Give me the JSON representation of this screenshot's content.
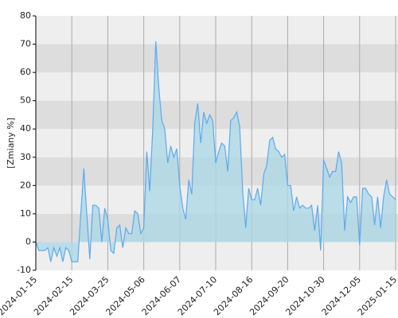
{
  "chart_data": {
    "type": "area",
    "y_label": "[Zmiany %]",
    "categories": [
      "2024-01-15",
      null,
      null,
      null,
      null,
      null,
      null,
      null,
      null,
      null,
      null,
      null,
      "2024-02-15",
      null,
      null,
      null,
      null,
      null,
      null,
      null,
      null,
      null,
      null,
      null,
      "2024-03-25",
      null,
      null,
      null,
      null,
      null,
      null,
      null,
      null,
      null,
      null,
      null,
      "2024-05-06",
      null,
      null,
      null,
      null,
      null,
      null,
      null,
      null,
      null,
      null,
      null,
      "2024-06-07",
      null,
      null,
      null,
      null,
      null,
      null,
      null,
      null,
      null,
      null,
      null,
      "2024-07-10",
      null,
      null,
      null,
      null,
      null,
      null,
      null,
      null,
      null,
      null,
      null,
      "2024-08-16",
      null,
      null,
      null,
      null,
      null,
      null,
      null,
      null,
      null,
      null,
      null,
      "2024-09-20",
      null,
      null,
      null,
      null,
      null,
      null,
      null,
      null,
      null,
      null,
      null,
      "2024-10-30",
      null,
      null,
      null,
      null,
      null,
      null,
      null,
      null,
      null,
      null,
      null,
      "2024-12-05",
      null,
      null,
      null,
      null,
      null,
      null,
      null,
      null,
      null,
      null,
      null,
      "2025-01-15"
    ],
    "values": [
      0,
      -3,
      -3,
      -3,
      -2,
      -7,
      -2,
      -5,
      -2,
      -7,
      -2,
      -3,
      -7,
      -7,
      -7,
      10,
      26,
      10,
      -6,
      13,
      13,
      12,
      0,
      12,
      8,
      -3,
      -4,
      5,
      6,
      -2,
      5,
      3,
      3,
      11,
      10,
      3,
      5,
      32,
      18,
      40,
      71,
      55,
      43,
      40,
      28,
      34,
      30,
      33,
      20,
      12,
      8,
      22,
      17,
      42,
      49,
      35,
      46,
      42,
      45,
      43,
      28,
      32,
      35,
      34,
      25,
      43,
      44,
      46,
      41,
      18,
      5,
      19,
      15,
      15,
      19,
      13,
      24,
      27,
      36,
      37,
      33,
      32,
      30,
      31,
      20,
      20,
      11,
      16,
      12,
      13,
      12,
      12,
      13,
      4,
      13,
      -3,
      29,
      26,
      23,
      25,
      25,
      32,
      28,
      4,
      16,
      14,
      16,
      16,
      -1,
      19,
      19,
      17,
      16,
      6,
      16,
      5,
      16,
      22,
      17,
      16,
      15
    ],
    "color": "#5aaaf0",
    "fill": "#add8e6",
    "ylim": [
      -10,
      80
    ],
    "yticks": [
      -10,
      0,
      10,
      20,
      30,
      40,
      50,
      60,
      70,
      80
    ],
    "grid": true,
    "band_colors": [
      "#eeeeee",
      "#dddddd"
    ]
  }
}
